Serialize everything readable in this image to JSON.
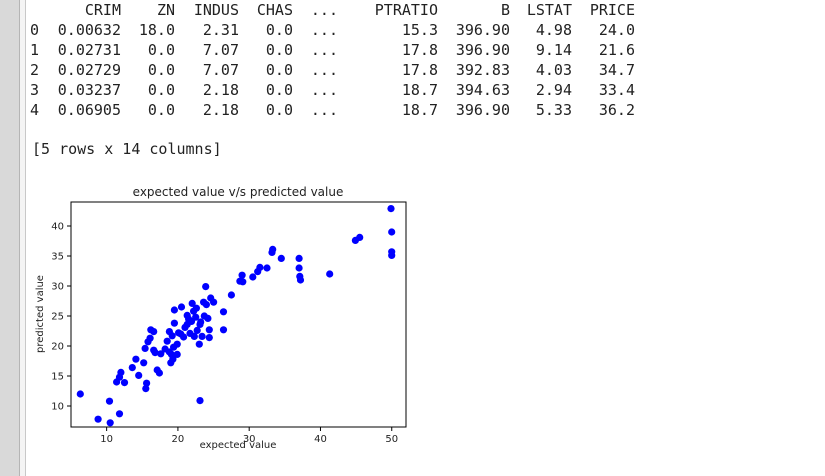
{
  "console": {
    "columns": [
      "",
      "CRIM",
      "ZN",
      "INDUS",
      "CHAS",
      "...",
      "PTRATIO",
      "B",
      "LSTAT",
      "PRICE"
    ],
    "rows": [
      [
        "0",
        "0.00632",
        "18.0",
        "2.31",
        "0.0",
        "...",
        "15.3",
        "396.90",
        "4.98",
        "24.0"
      ],
      [
        "1",
        "0.02731",
        "0.0",
        "7.07",
        "0.0",
        "...",
        "17.8",
        "396.90",
        "9.14",
        "21.6"
      ],
      [
        "2",
        "0.02729",
        "0.0",
        "7.07",
        "0.0",
        "...",
        "17.8",
        "392.83",
        "4.03",
        "34.7"
      ],
      [
        "3",
        "0.03237",
        "0.0",
        "2.18",
        "0.0",
        "...",
        "18.7",
        "394.63",
        "2.94",
        "33.4"
      ],
      [
        "4",
        "0.06905",
        "0.0",
        "2.18",
        "0.0",
        "...",
        "18.7",
        "396.90",
        "5.33",
        "36.2"
      ]
    ],
    "summary": "[5 rows x 14 columns]"
  },
  "chart_data": {
    "type": "scatter",
    "title": "expected value v/s predicted value",
    "xlabel": "expected value",
    "ylabel": "predicted value",
    "xlim": [
      5,
      52
    ],
    "ylim": [
      6.5,
      44
    ],
    "xticks": [
      10,
      20,
      30,
      40,
      50
    ],
    "yticks": [
      10,
      15,
      20,
      25,
      30,
      35,
      40
    ],
    "grid": false,
    "color": "#0000ff",
    "points": [
      [
        6.3,
        12.0
      ],
      [
        8.8,
        7.8
      ],
      [
        10.4,
        10.8
      ],
      [
        10.5,
        7.2
      ],
      [
        11.8,
        8.7
      ],
      [
        11.4,
        14.0
      ],
      [
        11.8,
        14.8
      ],
      [
        12.0,
        15.6
      ],
      [
        12.5,
        13.9
      ],
      [
        13.6,
        16.4
      ],
      [
        14.1,
        17.8
      ],
      [
        14.5,
        15.1
      ],
      [
        15.2,
        17.2
      ],
      [
        15.4,
        19.6
      ],
      [
        15.5,
        12.9
      ],
      [
        15.6,
        13.8
      ],
      [
        15.8,
        20.7
      ],
      [
        16.1,
        21.3
      ],
      [
        16.2,
        22.7
      ],
      [
        16.6,
        19.3
      ],
      [
        16.8,
        18.9
      ],
      [
        16.6,
        22.4
      ],
      [
        17.4,
        15.5
      ],
      [
        17.6,
        18.7
      ],
      [
        17.1,
        16.0
      ],
      [
        18.2,
        19.5
      ],
      [
        18.5,
        20.8
      ],
      [
        18.8,
        19.0
      ],
      [
        19.0,
        17.2
      ],
      [
        19.1,
        18.6
      ],
      [
        19.2,
        21.7
      ],
      [
        19.3,
        17.8
      ],
      [
        19.4,
        19.8
      ],
      [
        19.5,
        23.8
      ],
      [
        19.5,
        26.0
      ],
      [
        18.8,
        22.4
      ],
      [
        19.9,
        18.6
      ],
      [
        19.9,
        20.3
      ],
      [
        20.1,
        22.2
      ],
      [
        20.5,
        26.5
      ],
      [
        20.4,
        22.0
      ],
      [
        20.8,
        21.5
      ],
      [
        21.0,
        23.1
      ],
      [
        21.3,
        25.1
      ],
      [
        21.3,
        23.6
      ],
      [
        21.5,
        24.5
      ],
      [
        21.7,
        22.1
      ],
      [
        21.9,
        24.1
      ],
      [
        22.0,
        27.1
      ],
      [
        22.2,
        25.8
      ],
      [
        22.3,
        21.6
      ],
      [
        22.5,
        24.8
      ],
      [
        22.6,
        26.3
      ],
      [
        22.7,
        22.6
      ],
      [
        23.0,
        20.3
      ],
      [
        23.1,
        23.6
      ],
      [
        23.2,
        24.0
      ],
      [
        23.1,
        10.9
      ],
      [
        23.4,
        21.6
      ],
      [
        23.6,
        27.3
      ],
      [
        23.7,
        25.0
      ],
      [
        23.9,
        29.9
      ],
      [
        24.0,
        26.9
      ],
      [
        24.2,
        24.6
      ],
      [
        24.4,
        22.7
      ],
      [
        24.4,
        21.4
      ],
      [
        24.6,
        28.0
      ],
      [
        25.0,
        27.3
      ],
      [
        26.4,
        22.7
      ],
      [
        26.4,
        25.7
      ],
      [
        27.5,
        28.5
      ],
      [
        28.7,
        30.8
      ],
      [
        29.0,
        31.8
      ],
      [
        29.1,
        30.7
      ],
      [
        30.5,
        31.5
      ],
      [
        31.2,
        32.4
      ],
      [
        31.5,
        33.1
      ],
      [
        32.5,
        33.0
      ],
      [
        33.2,
        35.6
      ],
      [
        33.3,
        36.1
      ],
      [
        34.5,
        34.6
      ],
      [
        37.0,
        34.6
      ],
      [
        37.0,
        33.0
      ],
      [
        37.1,
        31.6
      ],
      [
        37.2,
        31.0
      ],
      [
        41.3,
        32.0
      ],
      [
        44.9,
        37.6
      ],
      [
        45.5,
        38.1
      ],
      [
        49.9,
        42.9
      ],
      [
        50.0,
        39.0
      ],
      [
        50.0,
        35.7
      ],
      [
        50.0,
        35.1
      ]
    ]
  }
}
